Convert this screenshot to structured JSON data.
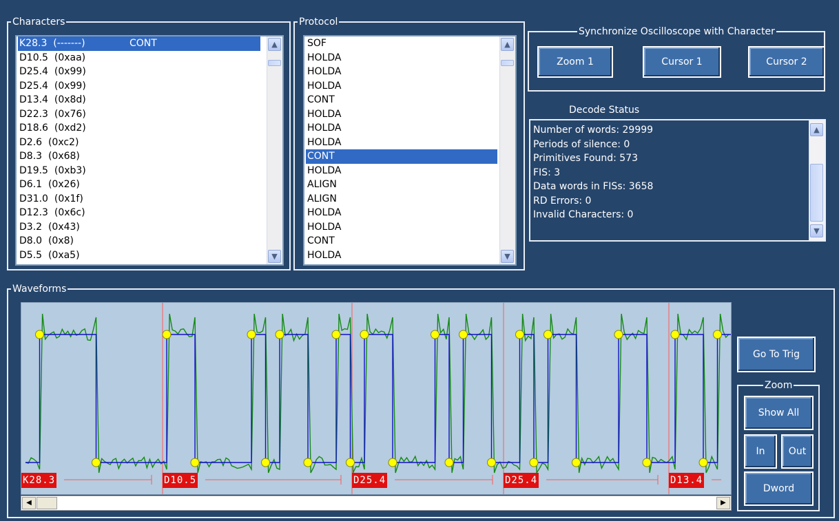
{
  "characters": {
    "title": "Characters",
    "items": [
      {
        "label": "K28.3  (-------)",
        "suffix": "CONT",
        "selected": true
      },
      {
        "label": "D10.5  (0xaa)",
        "suffix": ""
      },
      {
        "label": "D25.4  (0x99)",
        "suffix": ""
      },
      {
        "label": "D25.4  (0x99)",
        "suffix": ""
      },
      {
        "label": "D13.4  (0x8d)",
        "suffix": ""
      },
      {
        "label": "D22.3  (0x76)",
        "suffix": ""
      },
      {
        "label": "D18.6  (0xd2)",
        "suffix": ""
      },
      {
        "label": "D2.6  (0xc2)",
        "suffix": ""
      },
      {
        "label": "D8.3  (0x68)",
        "suffix": ""
      },
      {
        "label": "D19.5  (0xb3)",
        "suffix": ""
      },
      {
        "label": "D6.1  (0x26)",
        "suffix": ""
      },
      {
        "label": "D31.0  (0x1f)",
        "suffix": ""
      },
      {
        "label": "D12.3  (0x6c)",
        "suffix": ""
      },
      {
        "label": "D3.2  (0x43)",
        "suffix": ""
      },
      {
        "label": "D8.0  (0x8)",
        "suffix": ""
      },
      {
        "label": "D5.5  (0xa5)",
        "suffix": ""
      }
    ]
  },
  "protocol": {
    "title": "Protocol",
    "items": [
      "SOF",
      "HOLDA",
      "HOLDA",
      "HOLDA",
      "CONT",
      "HOLDA",
      "HOLDA",
      "HOLDA",
      "CONT",
      "HOLDA",
      "ALIGN",
      "ALIGN",
      "HOLDA",
      "HOLDA",
      "CONT",
      "HOLDA"
    ],
    "selected_index": 8
  },
  "sync": {
    "title": "Synchronize Oscilloscope with Character",
    "zoom1": "Zoom 1",
    "cursor1": "Cursor 1",
    "cursor2": "Cursor 2"
  },
  "decode": {
    "title": "Decode Status",
    "lines": [
      "Number of words: 29999",
      "Periods of silence: 0",
      "Primitives Found: 573",
      "FIS: 3",
      "Data words in FISs: 3658",
      "RD Errors: 0",
      "Invalid Characters: 0"
    ]
  },
  "waveforms": {
    "title": "Waveforms",
    "labels": [
      "K28.3",
      "D10.5",
      "D25.4",
      "D25.4",
      "D13.4"
    ],
    "bits": [
      0,
      1,
      1,
      1,
      1,
      0,
      0,
      0,
      0,
      0,
      1,
      1,
      0,
      0,
      0,
      0,
      1,
      0,
      1,
      1,
      0,
      0,
      1,
      0,
      1,
      1,
      0,
      0,
      0,
      1,
      0,
      1,
      1,
      0,
      0,
      1,
      0,
      1,
      1,
      0,
      0,
      0,
      1,
      1,
      0,
      0,
      1,
      1,
      0,
      1
    ],
    "go_to_trig": "Go To Trig",
    "zoom_title": "Zoom",
    "show_all": "Show All",
    "in": "In",
    "out": "Out",
    "dword": "Dword"
  },
  "colors": {
    "background": "#26456b",
    "plot_background": "#b6cce0",
    "digital_trace": "#1010c8",
    "analog_trace": "#138a13",
    "marker": "#ffff00",
    "label_bg": "#e01010",
    "boundary": "#ff5a5a"
  }
}
